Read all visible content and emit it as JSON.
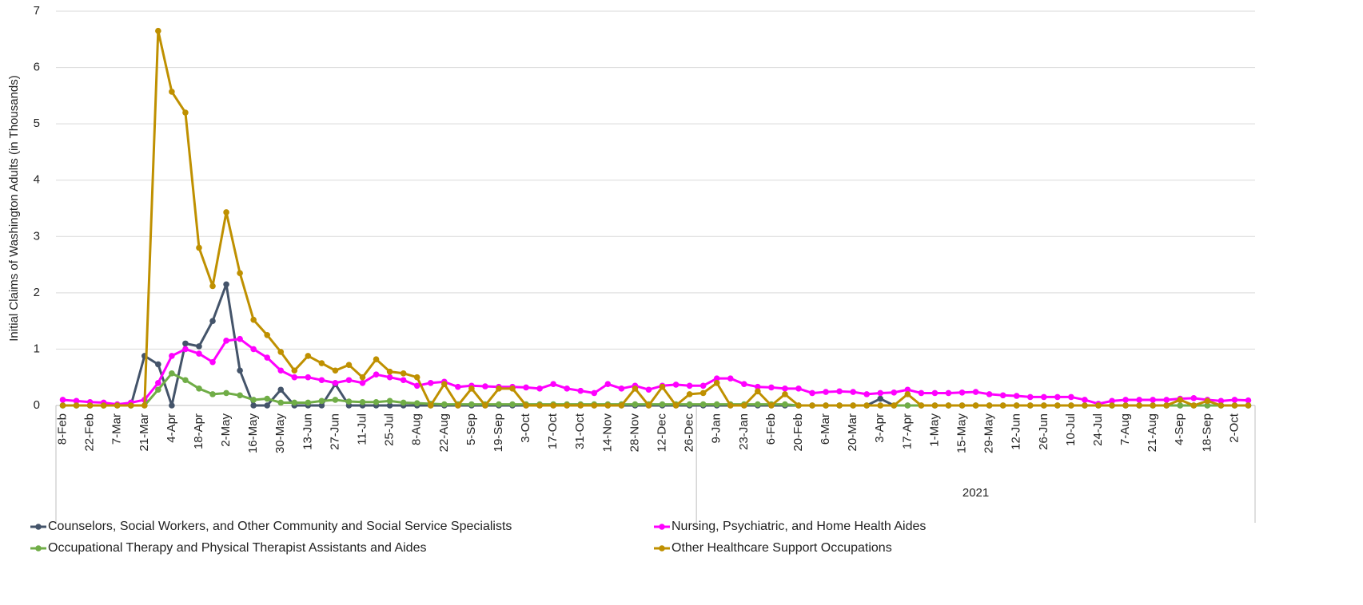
{
  "chart_data": {
    "type": "line",
    "y_label": "Initial Claims of Washington Adults (in Thousands)",
    "ylim": [
      0,
      7
    ],
    "yticks": [
      0,
      1,
      2,
      3,
      4,
      5,
      6,
      7
    ],
    "grid": true,
    "markers": true,
    "categories": [
      "8-Feb",
      null,
      "22-Feb",
      null,
      "7-Mar",
      null,
      "21-Mar",
      null,
      "4-Apr",
      null,
      "18-Apr",
      null,
      "2-May",
      null,
      "16-May",
      null,
      "30-May",
      null,
      "13-Jun",
      null,
      "27-Jun",
      null,
      "11-Jul",
      null,
      "25-Jul",
      null,
      "8-Aug",
      null,
      "22-Aug",
      null,
      "5-Sep",
      null,
      "19-Sep",
      null,
      "3-Oct",
      null,
      "17-Oct",
      null,
      "31-Oct",
      null,
      "14-Nov",
      null,
      "28-Nov",
      null,
      "12-Dec",
      null,
      "26-Dec",
      null,
      "9-Jan",
      null,
      "23-Jan",
      null,
      "6-Feb",
      null,
      "20-Feb",
      null,
      "6-Mar",
      null,
      "20-Mar",
      null,
      "3-Apr",
      null,
      "17-Apr",
      null,
      "1-May",
      null,
      "15-May",
      null,
      "29-May",
      null,
      "12-Jun",
      null,
      "26-Jun",
      null,
      "10-Jul",
      null,
      "24-Jul",
      null,
      "7-Aug",
      null,
      "21-Aug",
      null,
      "4-Sep",
      null,
      "18-Sep",
      null,
      "2-Oct",
      null
    ],
    "x_groups": [
      {
        "label": null,
        "count": 47
      },
      {
        "label": "2021",
        "count": 41
      }
    ],
    "legend": "bottom",
    "series": [
      {
        "name": "Counselors, Social Workers, and Other Community and Social Service Specialists",
        "color": "#44546a",
        "values": [
          0,
          0,
          0,
          0,
          0,
          0,
          0.88,
          0.73,
          0,
          1.1,
          1.05,
          1.5,
          2.15,
          0.62,
          0,
          0,
          0.28,
          0,
          0,
          0,
          0.38,
          0,
          0,
          0,
          0,
          0,
          0,
          0,
          0,
          0,
          0,
          0,
          0,
          0,
          0,
          0,
          0,
          0,
          0,
          0,
          0,
          0,
          0,
          0,
          0,
          0,
          0,
          0,
          0,
          0,
          0,
          0,
          0,
          0,
          0,
          0,
          0,
          0,
          0,
          0,
          0.12,
          0,
          0,
          0,
          0,
          0,
          0,
          0,
          0,
          0,
          0,
          0,
          0,
          0,
          0,
          0,
          0,
          0,
          0,
          0,
          0,
          0,
          0,
          0,
          0,
          0,
          0,
          0
        ]
      },
      {
        "name": "Nursing, Psychiatric, and Home Health Aides",
        "color": "#ff00ff",
        "values": [
          0.1,
          0.08,
          0.06,
          0.05,
          0.02,
          0.05,
          0.1,
          0.4,
          0.88,
          1.0,
          0.92,
          0.77,
          1.15,
          1.18,
          1.0,
          0.85,
          0.62,
          0.5,
          0.5,
          0.45,
          0.4,
          0.45,
          0.4,
          0.55,
          0.5,
          0.45,
          0.35,
          0.4,
          0.42,
          0.33,
          0.35,
          0.34,
          0.33,
          0.33,
          0.32,
          0.3,
          0.38,
          0.3,
          0.26,
          0.22,
          0.38,
          0.3,
          0.35,
          0.28,
          0.35,
          0.37,
          0.35,
          0.35,
          0.48,
          0.48,
          0.38,
          0.33,
          0.32,
          0.3,
          0.3,
          0.22,
          0.24,
          0.25,
          0.24,
          0.2,
          0.22,
          0.23,
          0.28,
          0.22,
          0.22,
          0.22,
          0.23,
          0.24,
          0.2,
          0.18,
          0.17,
          0.15,
          0.15,
          0.15,
          0.15,
          0.1,
          0.03,
          0.08,
          0.1,
          0.1,
          0.1,
          0.1,
          0.12,
          0.13,
          0.1,
          0.08,
          0.1,
          0.09
        ]
      },
      {
        "name": "Occupational Therapy and Physical Therapist Assistants and Aides",
        "color": "#70ad47",
        "values": [
          0,
          0,
          0,
          0,
          0,
          0,
          0,
          0.28,
          0.57,
          0.45,
          0.3,
          0.2,
          0.22,
          0.18,
          0.1,
          0.12,
          0.05,
          0.05,
          0.05,
          0.08,
          0.1,
          0.07,
          0.06,
          0.06,
          0.08,
          0.05,
          0.04,
          0.03,
          0.02,
          0.02,
          0.02,
          0.02,
          0.02,
          0.02,
          0.02,
          0.02,
          0.02,
          0.02,
          0.02,
          0.02,
          0.02,
          0.02,
          0.02,
          0.02,
          0.02,
          0.02,
          0.02,
          0.02,
          0.02,
          0.02,
          0.02,
          0.02,
          0.02,
          0.02,
          0,
          0,
          0,
          0,
          0,
          0,
          0,
          0,
          0,
          0,
          0,
          0,
          0,
          0,
          0,
          0,
          0,
          0,
          0,
          0,
          0,
          0,
          0,
          0,
          0,
          0,
          0,
          0,
          0,
          0,
          0,
          0,
          0,
          0
        ]
      },
      {
        "name": "Other Healthcare Support Occupations",
        "color": "#bf9000",
        "values": [
          0,
          0,
          0,
          0,
          0,
          0,
          0,
          6.65,
          5.57,
          5.2,
          2.8,
          2.12,
          3.43,
          2.35,
          1.52,
          1.25,
          0.95,
          0.62,
          0.88,
          0.75,
          0.62,
          0.72,
          0.5,
          0.82,
          0.6,
          0.57,
          0.5,
          0,
          0.38,
          0,
          0.3,
          0,
          0.3,
          0.3,
          0,
          0,
          0,
          0,
          0,
          0,
          0,
          0,
          0.3,
          0,
          0.33,
          0,
          0.2,
          0.22,
          0.4,
          0,
          0,
          0.25,
          0,
          0.2,
          0,
          0,
          0,
          0,
          0,
          0,
          0,
          0,
          0.2,
          0,
          0,
          0,
          0,
          0,
          0,
          0,
          0,
          0,
          0,
          0,
          0,
          0,
          0,
          0,
          0,
          0,
          0,
          0,
          0.1,
          0,
          0.08,
          0,
          0,
          0
        ]
      }
    ]
  }
}
